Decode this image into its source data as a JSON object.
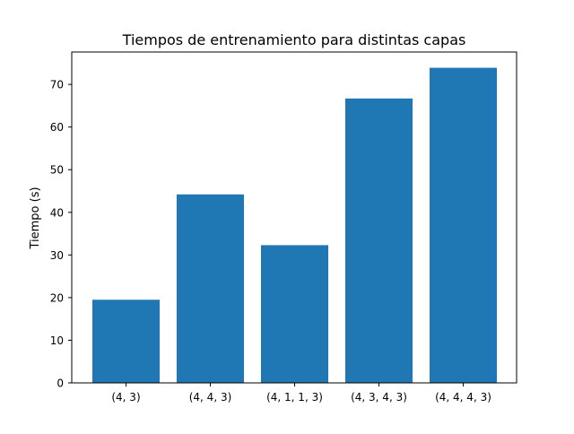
{
  "chart_data": {
    "type": "bar",
    "title": "Tiempos de entrenamiento para distintas capas",
    "xlabel": "",
    "ylabel": "Tiempo (s)",
    "categories": [
      "(4, 3)",
      "(4, 4, 3)",
      "(4, 1, 1, 3)",
      "(4, 3, 4, 3)",
      "(4, 4, 4, 3)"
    ],
    "values": [
      19.5,
      44.2,
      32.3,
      66.7,
      73.9
    ],
    "ylim": [
      0,
      77.6
    ],
    "yticks": [
      0,
      10,
      20,
      30,
      40,
      50,
      60,
      70
    ],
    "bar_color": "#1f77b4",
    "grid": false,
    "legend": "none"
  }
}
